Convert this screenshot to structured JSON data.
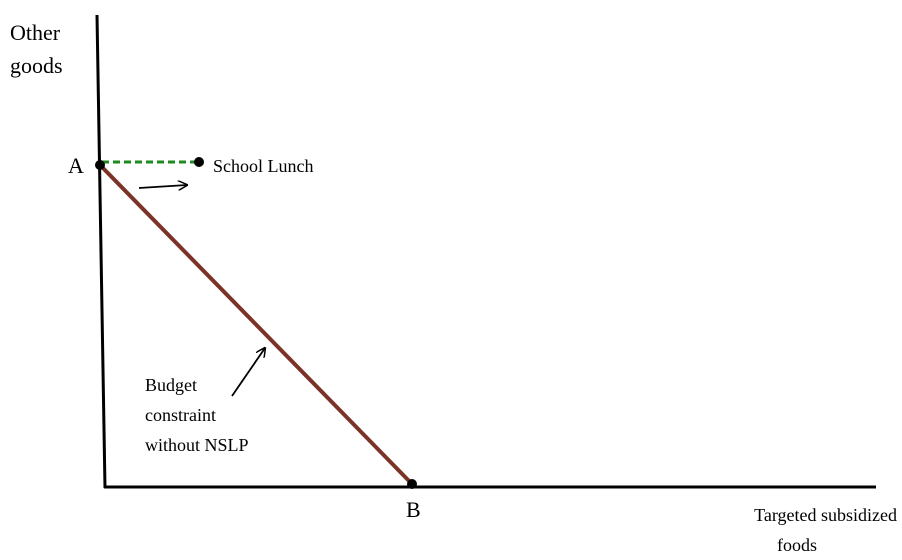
{
  "axes": {
    "y_label": [
      "Other",
      "goods"
    ],
    "x_label": [
      "Targeted subsidized",
      "foods"
    ]
  },
  "points": [
    {
      "label": "A"
    },
    {
      "label": "B"
    }
  ],
  "annotations": {
    "school_lunch": "School Lunch",
    "budget_constraint": [
      "Budget",
      "constraint",
      "without NSLP"
    ]
  }
}
